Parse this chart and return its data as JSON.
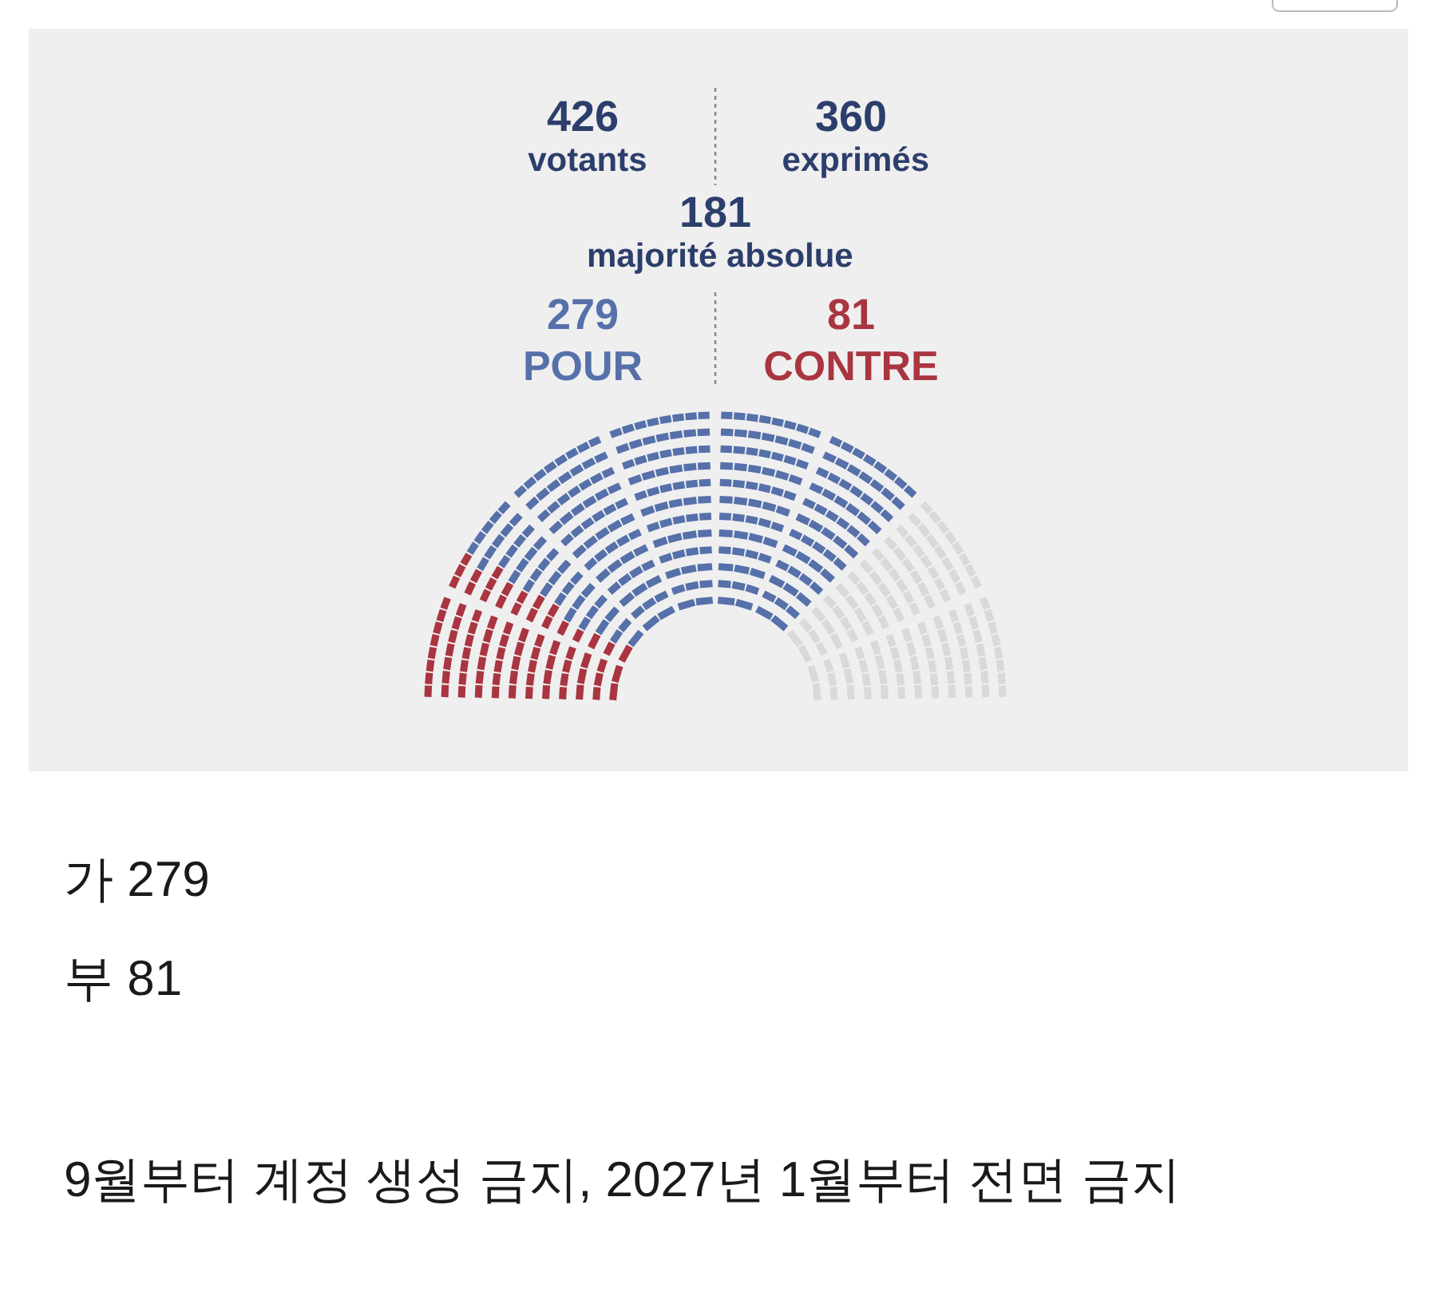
{
  "chart_data": {
    "type": "other",
    "categories": [
      "POUR",
      "CONTRE"
    ],
    "values": [
      279,
      81
    ],
    "colors": [
      "#5670aa",
      "#a93540"
    ],
    "data_labels": true,
    "annotations": [
      "426 votants",
      "360 exprimés",
      "181 majorité absolue",
      "가 279",
      "부 81",
      "9월부터 계정 생성 금지, 2027년 1월부터 전면 금지"
    ]
  }
}
